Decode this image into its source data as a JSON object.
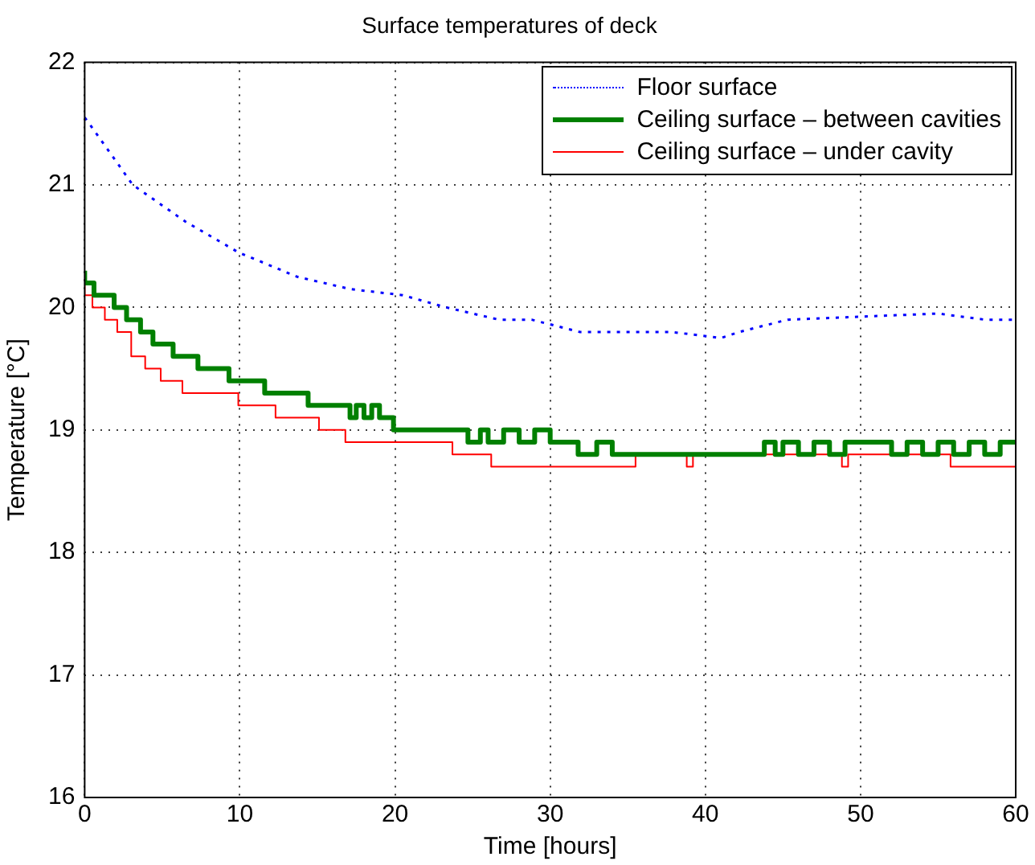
{
  "chart_data": {
    "type": "line",
    "title": "Surface temperatures of deck",
    "xlabel": "Time [hours]",
    "ylabel": "Temperature [°C]",
    "xlim": [
      0,
      60
    ],
    "xticks": [
      0,
      10,
      20,
      30,
      40,
      50,
      60
    ],
    "ylim": [
      16,
      22
    ],
    "yticks": [
      16,
      17,
      18,
      19,
      20,
      21,
      22
    ],
    "grid": true,
    "legend": "top right",
    "marker": "none",
    "series": [
      {
        "name": "Floor surface",
        "type": "line",
        "line_style": "dotted",
        "color": "#0000ff",
        "x": [
          0,
          0.3,
          3.1,
          6.5,
          9.9,
          13.7,
          17.1,
          20.5,
          23.3,
          26.7,
          28.8,
          31.9,
          37.8,
          41,
          42.2,
          45.3,
          55,
          58,
          60
        ],
        "values": [
          21.55,
          21.5,
          21.0,
          20.7,
          20.45,
          20.25,
          20.15,
          20.1,
          20.0,
          19.9,
          19.9,
          19.8,
          19.8,
          19.75,
          19.8,
          19.9,
          19.95,
          19.9,
          19.9
        ]
      },
      {
        "name": "Ceiling surface – between cavities",
        "type": "step",
        "line_style": "solid",
        "color": "#008000",
        "x": [
          0,
          0.6,
          1.9,
          2.7,
          3.6,
          4.4,
          5.7,
          7.3,
          9.3,
          11.6,
          14.4,
          17.1,
          17.5,
          18,
          18.5,
          19,
          19.9,
          24.7,
          25.5,
          26,
          27,
          28,
          29,
          30,
          31.8,
          33,
          34,
          35,
          43.8,
          44.5,
          45,
          46,
          47,
          48,
          49,
          52,
          53,
          54,
          55,
          56,
          57,
          58,
          59,
          60
        ],
        "values": [
          20.3,
          20.2,
          20.1,
          20.0,
          19.9,
          19.8,
          19.7,
          19.6,
          19.5,
          19.4,
          19.3,
          19.2,
          19.1,
          19.2,
          19.1,
          19.2,
          19.1,
          19.0,
          18.9,
          19.0,
          18.9,
          19.0,
          18.9,
          19.0,
          18.9,
          18.8,
          18.9,
          18.8,
          18.8,
          18.9,
          18.8,
          18.9,
          18.8,
          18.9,
          18.8,
          18.9,
          18.8,
          18.9,
          18.8,
          18.9,
          18.8,
          18.9,
          18.8,
          18.9
        ]
      },
      {
        "name": "Ceiling surface – under cavity",
        "type": "step",
        "line_style": "solid",
        "color": "#ff0000",
        "x": [
          0,
          0.5,
          1.3,
          2.1,
          3.0,
          3.9,
          4.9,
          6.3,
          9.9,
          12.3,
          15.1,
          16.8,
          23.7,
          26.2,
          35.5,
          38.8,
          39.2,
          48.8,
          49.2,
          55.8,
          56.2,
          60
        ],
        "values": [
          20.2,
          20.1,
          20.0,
          19.9,
          19.8,
          19.6,
          19.5,
          19.4,
          19.3,
          19.2,
          19.1,
          19.0,
          18.9,
          18.8,
          18.7,
          18.8,
          18.7,
          18.8,
          18.7,
          18.8,
          18.7,
          18.7
        ]
      }
    ]
  }
}
